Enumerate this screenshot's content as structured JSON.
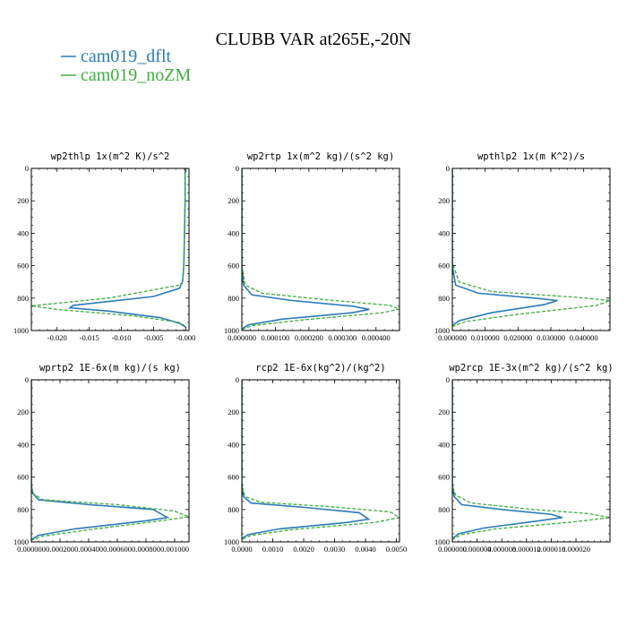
{
  "figure": {
    "title": "CLUBB VAR at265E,-20N",
    "legend": [
      {
        "label": "cam019_dflt",
        "color": "#2b7bb9",
        "dash": "solid"
      },
      {
        "label": "cam019_noZM",
        "color": "#3fae3f",
        "dash": "dashed"
      }
    ]
  },
  "chart_data": [
    {
      "type": "line",
      "title": "wp2thlp  1x(m^2 K)/s^2",
      "xlim": [
        -0.024,
        0.0005
      ],
      "ylim": [
        1000,
        0
      ],
      "y_inverted": true,
      "xticks": [
        -0.02,
        -0.015,
        -0.01,
        -0.005,
        0.0
      ],
      "xtick_labels": [
        "-0.020",
        "-0.015",
        "-0.010",
        "-0.005",
        "-0.000"
      ],
      "yticks": [
        0,
        200,
        400,
        600,
        800,
        1000
      ],
      "ytick_labels": [
        "0",
        "200",
        "400",
        "600",
        "800",
        "1000"
      ],
      "series": [
        {
          "name": "cam019_dflt",
          "x": [
            -0.0001,
            -0.0001,
            -0.0002,
            -0.0003,
            -0.0005,
            -0.001,
            -0.005,
            -0.0175,
            -0.018,
            -0.012,
            -0.004,
            -0.001,
            0.0
          ],
          "y": [
            0,
            200,
            400,
            600,
            700,
            740,
            790,
            845,
            860,
            880,
            920,
            955,
            980
          ]
        },
        {
          "name": "cam019_noZM",
          "x": [
            -0.0001,
            -0.0001,
            -0.0002,
            -0.0003,
            -0.0005,
            -0.001,
            -0.012,
            -0.024,
            -0.02,
            -0.008,
            -0.001,
            0.0
          ],
          "y": [
            0,
            200,
            400,
            600,
            700,
            720,
            800,
            848,
            870,
            910,
            950,
            975
          ]
        }
      ]
    },
    {
      "type": "line",
      "title": "wp2rtp  1x(m^2 kg)/(s^2 kg)",
      "xlim": [
        0,
        0.00047
      ],
      "ylim": [
        1000,
        0
      ],
      "y_inverted": true,
      "xticks": [
        0,
        0.0001,
        0.0002,
        0.0003,
        0.0004
      ],
      "xtick_labels": [
        "0.000000",
        "0.000100",
        "0.000200",
        "0.000300",
        "0.000400"
      ],
      "yticks": [
        0,
        200,
        400,
        600,
        800,
        1000
      ],
      "ytick_labels": [
        "0",
        "200",
        "400",
        "600",
        "800",
        "1000"
      ],
      "series": [
        {
          "name": "cam019_dflt",
          "x": [
            0,
            0,
            5e-06,
            3e-05,
            0.00015,
            0.00033,
            0.00038,
            0.00033,
            0.00012,
            2e-05,
            0
          ],
          "y": [
            0,
            600,
            720,
            780,
            815,
            850,
            870,
            890,
            930,
            965,
            990
          ]
        },
        {
          "name": "cam019_noZM",
          "x": [
            0,
            0,
            1e-05,
            6e-05,
            0.00025,
            0.00044,
            0.00047,
            0.00042,
            0.00018,
            3e-05,
            0
          ],
          "y": [
            0,
            600,
            720,
            770,
            810,
            845,
            868,
            890,
            935,
            970,
            995
          ]
        }
      ]
    },
    {
      "type": "line",
      "title": "wpthlp2  1x(m K^2)/s",
      "xlim": [
        0,
        0.048
      ],
      "ylim": [
        1000,
        0
      ],
      "y_inverted": true,
      "xticks": [
        0,
        0.01,
        0.02,
        0.03,
        0.04
      ],
      "xtick_labels": [
        "0.000000",
        "0.010000",
        "0.020000",
        "0.030000",
        "0.040000"
      ],
      "yticks": [
        0,
        200,
        400,
        600,
        800,
        1000
      ],
      "ytick_labels": [
        "0",
        "200",
        "400",
        "600",
        "800",
        "1000"
      ],
      "series": [
        {
          "name": "cam019_dflt",
          "x": [
            0,
            0,
            0.001,
            0.008,
            0.025,
            0.032,
            0.028,
            0.012,
            0.002,
            0
          ],
          "y": [
            0,
            600,
            720,
            770,
            800,
            815,
            840,
            890,
            940,
            970
          ]
        },
        {
          "name": "cam019_noZM",
          "x": [
            0,
            0,
            0.002,
            0.012,
            0.038,
            0.048,
            0.044,
            0.02,
            0.004,
            0
          ],
          "y": [
            0,
            580,
            700,
            760,
            795,
            815,
            845,
            900,
            945,
            975
          ]
        }
      ]
    },
    {
      "type": "line",
      "title": "wprtp2  1E-6x(m kg)/(s kg)",
      "xlim": [
        0,
        0.0011
      ],
      "ylim": [
        1000,
        0
      ],
      "y_inverted": true,
      "xticks": [
        0,
        0.0002,
        0.0004,
        0.0006,
        0.0008,
        0.001
      ],
      "xtick_labels": [
        "0.000000",
        "0.000200",
        "0.000400",
        "0.000600",
        "0.000800",
        "0.001000"
      ],
      "yticks": [
        0,
        200,
        400,
        600,
        800,
        1000
      ],
      "ytick_labels": [
        "0",
        "200",
        "400",
        "600",
        "800",
        "1000"
      ],
      "series": [
        {
          "name": "cam019_dflt",
          "x": [
            0,
            0,
            1e-05,
            5e-05,
            0.0004,
            0.00085,
            0.00095,
            0.0008,
            0.0003,
            5e-05,
            0
          ],
          "y": [
            0,
            650,
            700,
            740,
            770,
            800,
            850,
            870,
            920,
            960,
            985
          ]
        },
        {
          "name": "cam019_noZM",
          "x": [
            0,
            0,
            1e-05,
            8e-05,
            0.0006,
            0.001,
            0.0011,
            0.0009,
            0.0004,
            8e-05,
            0
          ],
          "y": [
            0,
            650,
            700,
            740,
            770,
            810,
            845,
            870,
            925,
            965,
            990
          ]
        }
      ]
    },
    {
      "type": "line",
      "title": "rcp2  1E-6x(kg^2)/(kg^2)",
      "xlim": [
        0,
        0.0051
      ],
      "ylim": [
        1000,
        0
      ],
      "y_inverted": true,
      "xticks": [
        0,
        0.001,
        0.002,
        0.003,
        0.004,
        0.005
      ],
      "xtick_labels": [
        "0.0000",
        "0.0010",
        "0.0020",
        "0.0030",
        "0.0040",
        "0.0050"
      ],
      "yticks": [
        0,
        200,
        400,
        600,
        800,
        1000
      ],
      "ytick_labels": [
        "0",
        "200",
        "400",
        "600",
        "800",
        "1000"
      ],
      "series": [
        {
          "name": "cam019_dflt",
          "x": [
            0,
            0,
            5e-05,
            0.0003,
            0.0022,
            0.0038,
            0.0041,
            0.0034,
            0.0012,
            0.0002,
            0
          ],
          "y": [
            0,
            650,
            720,
            760,
            790,
            820,
            860,
            880,
            920,
            955,
            980
          ]
        },
        {
          "name": "cam019_noZM",
          "x": [
            0,
            0,
            0.0001,
            0.0006,
            0.003,
            0.0048,
            0.0051,
            0.0043,
            0.0016,
            0.0003,
            0
          ],
          "y": [
            0,
            650,
            720,
            755,
            785,
            815,
            850,
            880,
            925,
            960,
            985
          ]
        }
      ]
    },
    {
      "type": "line",
      "title": "wp2rcp  1E-3x(m^2 kg)/(s^2 kg)",
      "xlim": [
        0,
        2.55e-05
      ],
      "ylim": [
        1000,
        0
      ],
      "y_inverted": true,
      "xticks": [
        0,
        4e-06,
        8e-06,
        1.2e-05,
        1.6e-05,
        2e-05
      ],
      "xtick_labels": [
        "0.000000",
        "0.000004",
        "0.000008",
        "0.000012",
        "0.000016",
        "0.000020"
      ],
      "yticks": [
        0,
        200,
        400,
        600,
        800,
        1000
      ],
      "ytick_labels": [
        "0",
        "200",
        "400",
        "600",
        "800",
        "1000"
      ],
      "series": [
        {
          "name": "cam019_dflt",
          "x": [
            0,
            0,
            3e-07,
            1.5e-06,
            8e-06,
            1.6e-05,
            1.78e-05,
            1.4e-05,
            5e-06,
            1e-06,
            0
          ],
          "y": [
            0,
            650,
            720,
            770,
            800,
            830,
            850,
            870,
            915,
            950,
            980
          ]
        },
        {
          "name": "cam019_noZM",
          "x": [
            0,
            0,
            5e-07,
            3e-06,
            1.3e-05,
            2.2e-05,
            2.55e-05,
            2e-05,
            7e-06,
            1.5e-06,
            0
          ],
          "y": [
            0,
            650,
            710,
            760,
            800,
            825,
            850,
            875,
            920,
            955,
            985
          ]
        }
      ]
    }
  ]
}
